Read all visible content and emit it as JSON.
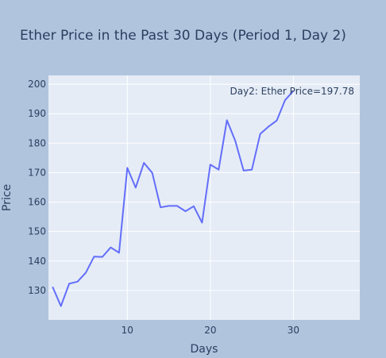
{
  "chart_data": {
    "type": "line",
    "title": "Ether Price in the Past 30 Days (Period 1, Day 2)",
    "xlabel": "Days",
    "ylabel": "Price",
    "xlim": [
      0.5,
      38
    ],
    "ylim": [
      120,
      203
    ],
    "x_ticks": [
      10,
      20,
      30
    ],
    "y_ticks": [
      130,
      140,
      150,
      160,
      170,
      180,
      190,
      200
    ],
    "grid": true,
    "colors": {
      "paper": "#b0c4de",
      "plot": "#e5ecf6",
      "grid": "#ffffff",
      "line": "#636efa",
      "text": "#2a3f5f"
    },
    "annotation": "Day2: Ether Price=197.78",
    "series": [
      {
        "x": [
          1,
          2,
          3,
          4,
          5,
          6,
          7,
          8,
          9,
          10,
          11,
          12,
          13,
          14,
          15,
          16,
          17,
          18,
          19,
          20,
          21,
          22,
          23,
          24,
          25,
          26,
          27,
          28,
          29,
          30
        ],
        "values": [
          131.2,
          124.7,
          132.3,
          133.0,
          136.0,
          141.5,
          141.4,
          144.6,
          142.8,
          171.6,
          164.9,
          173.3,
          169.9,
          158.2,
          158.7,
          158.7,
          156.9,
          158.6,
          153.0,
          172.7,
          171.0,
          187.8,
          180.8,
          170.7,
          171.0,
          183.1,
          185.6,
          187.7,
          194.6,
          197.78
        ]
      }
    ]
  }
}
